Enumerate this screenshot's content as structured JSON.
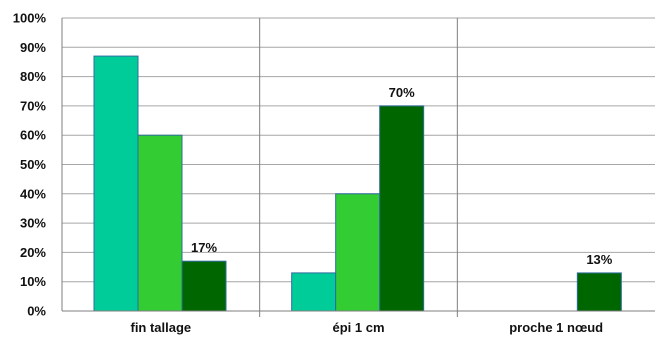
{
  "chart_data": {
    "type": "bar",
    "categories": [
      "fin tallage",
      "épi 1 cm",
      "proche 1 nœud"
    ],
    "series": [
      {
        "values": [
          87,
          13,
          0
        ],
        "color": "#00CC99"
      },
      {
        "values": [
          60,
          40,
          0
        ],
        "color": "#33CC33"
      },
      {
        "values": [
          17,
          70,
          13
        ],
        "color": "#006600"
      }
    ],
    "data_labels": [
      {
        "category_index": 0,
        "series_index": 2,
        "text": "17%"
      },
      {
        "category_index": 1,
        "series_index": 2,
        "text": "70%"
      },
      {
        "category_index": 2,
        "series_index": 2,
        "text": "13%"
      }
    ],
    "y_ticks": [
      "0%",
      "10%",
      "20%",
      "30%",
      "40%",
      "50%",
      "60%",
      "70%",
      "80%",
      "90%",
      "100%"
    ],
    "ylim": [
      0,
      100
    ],
    "grid": true,
    "legend": "none",
    "bar_edge_color": "#2E6E9E",
    "grid_color": "#A6A6A6",
    "separator_color": "#7F7F7F"
  }
}
